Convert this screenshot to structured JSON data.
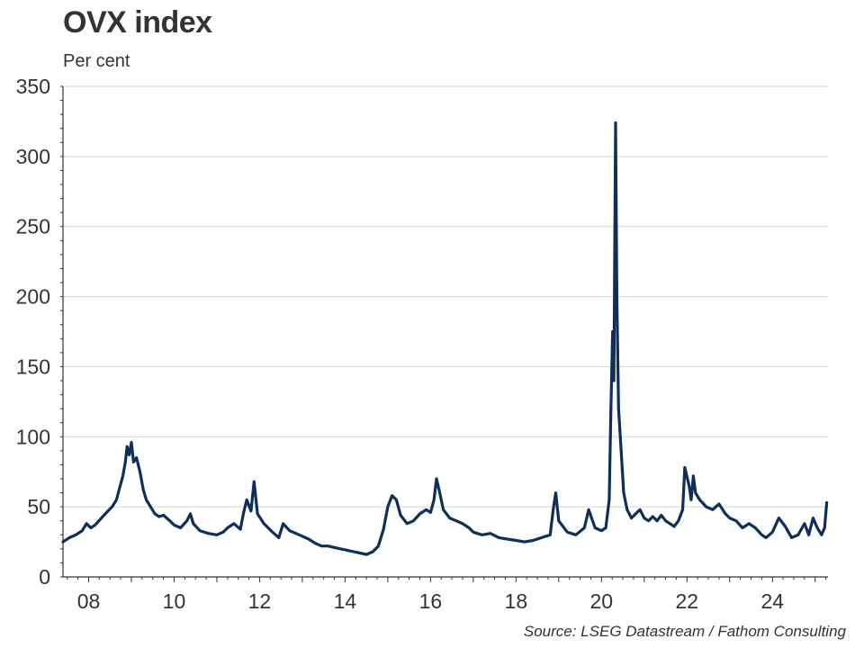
{
  "header": {
    "title": "OVX index",
    "subtitle": "Per cent"
  },
  "footer": {
    "source": "Source: LSEG Datastream / Fathom Consulting"
  },
  "colors": {
    "line": "#0d2f5a",
    "grid": "#d4d4d4",
    "axis": "#333333",
    "text": "#333333"
  },
  "chart_data": {
    "type": "line",
    "title": "OVX index",
    "ylabel": "Per cent",
    "xlabel": "",
    "ylim": [
      0,
      350
    ],
    "xlim": [
      2007.4,
      2025.3
    ],
    "grid": "horizontal",
    "legend": "none",
    "yticks": [
      0,
      50,
      100,
      150,
      200,
      250,
      300,
      350
    ],
    "xticks": [
      {
        "value": 2008,
        "label": "08"
      },
      {
        "value": 2010,
        "label": "10"
      },
      {
        "value": 2012,
        "label": "12"
      },
      {
        "value": 2014,
        "label": "14"
      },
      {
        "value": 2016,
        "label": "16"
      },
      {
        "value": 2018,
        "label": "18"
      },
      {
        "value": 2020,
        "label": "20"
      },
      {
        "value": 2022,
        "label": "22"
      },
      {
        "value": 2024,
        "label": "24"
      }
    ],
    "series": [
      {
        "x": [
          2007.4,
          2007.55,
          2007.7,
          2007.85,
          2007.95,
          2008.05,
          2008.15,
          2008.3,
          2008.45,
          2008.55,
          2008.65,
          2008.72,
          2008.8,
          2008.86,
          2008.9,
          2008.95,
          2009.0,
          2009.05,
          2009.12,
          2009.2,
          2009.28,
          2009.35,
          2009.45,
          2009.55,
          2009.65,
          2009.75,
          2009.9,
          2010.0,
          2010.15,
          2010.3,
          2010.38,
          2010.45,
          2010.6,
          2010.8,
          2011.0,
          2011.15,
          2011.25,
          2011.4,
          2011.55,
          2011.62,
          2011.7,
          2011.8,
          2011.87,
          2011.95,
          2012.1,
          2012.3,
          2012.45,
          2012.55,
          2012.7,
          2012.85,
          2013.0,
          2013.15,
          2013.3,
          2013.45,
          2013.6,
          2013.75,
          2013.9,
          2014.05,
          2014.2,
          2014.35,
          2014.5,
          2014.65,
          2014.78,
          2014.9,
          2015.0,
          2015.1,
          2015.2,
          2015.3,
          2015.45,
          2015.6,
          2015.75,
          2015.9,
          2016.0,
          2016.08,
          2016.14,
          2016.2,
          2016.3,
          2016.45,
          2016.6,
          2016.75,
          2016.9,
          2017.0,
          2017.2,
          2017.4,
          2017.6,
          2017.8,
          2018.0,
          2018.2,
          2018.4,
          2018.6,
          2018.8,
          2018.88,
          2018.93,
          2019.0,
          2019.2,
          2019.4,
          2019.6,
          2019.7,
          2019.85,
          2020.0,
          2020.1,
          2020.18,
          2020.22,
          2020.26,
          2020.29,
          2020.31,
          2020.33,
          2020.36,
          2020.4,
          2020.45,
          2020.52,
          2020.6,
          2020.7,
          2020.8,
          2020.9,
          2021.0,
          2021.1,
          2021.2,
          2021.3,
          2021.4,
          2021.5,
          2021.6,
          2021.7,
          2021.8,
          2021.9,
          2021.95,
          2022.05,
          2022.1,
          2022.15,
          2022.2,
          2022.3,
          2022.45,
          2022.6,
          2022.75,
          2022.9,
          2023.0,
          2023.15,
          2023.3,
          2023.45,
          2023.6,
          2023.75,
          2023.85,
          2024.0,
          2024.15,
          2024.3,
          2024.45,
          2024.6,
          2024.75,
          2024.85,
          2024.95,
          2025.05,
          2025.15,
          2025.22,
          2025.27
        ],
        "values": [
          25,
          28,
          30,
          33,
          38,
          35,
          37,
          42,
          47,
          50,
          55,
          63,
          72,
          82,
          93,
          87,
          96,
          82,
          85,
          75,
          62,
          55,
          50,
          45,
          43,
          44,
          40,
          37,
          35,
          40,
          45,
          38,
          33,
          31,
          30,
          32,
          35,
          38,
          34,
          45,
          55,
          47,
          68,
          45,
          38,
          32,
          28,
          38,
          33,
          31,
          29,
          27,
          24,
          22,
          22,
          21,
          20,
          19,
          18,
          17,
          16,
          18,
          22,
          34,
          50,
          58,
          55,
          44,
          38,
          40,
          45,
          48,
          46,
          55,
          70,
          62,
          48,
          42,
          40,
          38,
          35,
          32,
          30,
          31,
          28,
          27,
          26,
          25,
          26,
          28,
          30,
          50,
          60,
          40,
          32,
          30,
          35,
          48,
          35,
          33,
          35,
          55,
          120,
          175,
          140,
          230,
          324,
          200,
          120,
          95,
          60,
          48,
          42,
          45,
          48,
          42,
          40,
          43,
          40,
          44,
          40,
          38,
          36,
          40,
          48,
          78,
          65,
          55,
          72,
          60,
          55,
          50,
          48,
          52,
          45,
          42,
          40,
          35,
          38,
          35,
          30,
          28,
          32,
          42,
          36,
          28,
          30,
          38,
          30,
          42,
          35,
          30,
          35,
          53
        ]
      }
    ]
  }
}
